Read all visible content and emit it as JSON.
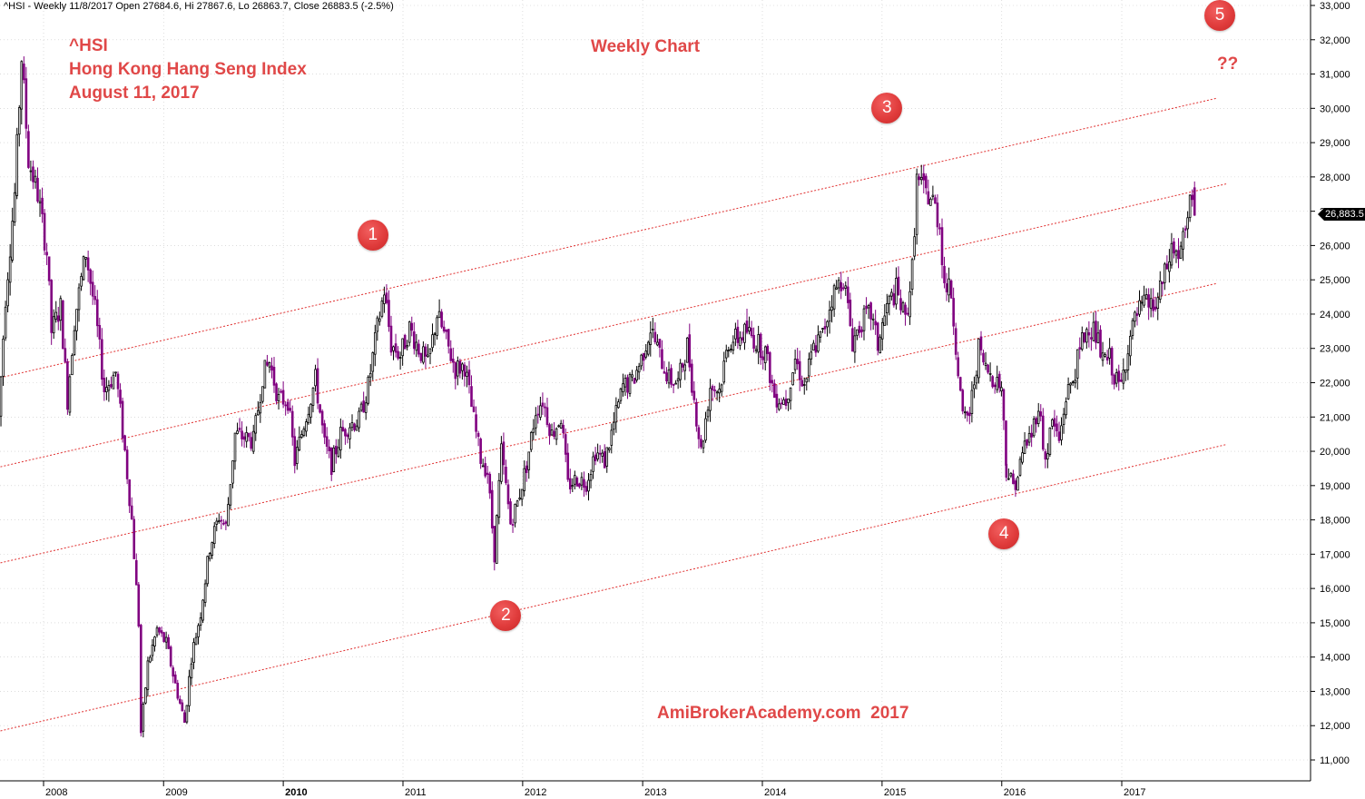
{
  "header": {
    "text": "^HSI - Weekly 11/8/2017 Open 27684.6, Hi 27867.6, Lo 26863.7, Close 26883.5 (-2.5%)"
  },
  "title_lines": [
    "^HSI",
    "Hong Kong Hang Seng Index",
    "August 11, 2017"
  ],
  "subtitle": "Weekly Chart",
  "watermark": "AmiBrokerAcademy.com  2017",
  "question_mark": "??",
  "last_price_label": "26,883.5",
  "colors": {
    "annotation": "#e04848",
    "up_candle": "#000000",
    "down_candle": "#800080",
    "channel": "#e03030",
    "grid": "#c8c8c8"
  },
  "markers": [
    {
      "label": "1",
      "date": "2010-10-01",
      "value": 26300
    },
    {
      "label": "2",
      "date": "2011-11-11",
      "value": 15200
    },
    {
      "label": "3",
      "date": "2015-01-16",
      "value": 30000
    },
    {
      "label": "4",
      "date": "2016-01-08",
      "value": 17600
    },
    {
      "label": "5",
      "date": "2017-10-27",
      "value": 32700
    }
  ],
  "chart_data": {
    "type": "candlestick",
    "title": "Hong Kong Hang Seng Index",
    "ylim": [
      10400,
      33200
    ],
    "y_ticks": [
      11000,
      12000,
      13000,
      14000,
      15000,
      16000,
      17000,
      18000,
      19000,
      20000,
      21000,
      22000,
      23000,
      24000,
      25000,
      26000,
      27000,
      28000,
      29000,
      30000,
      31000,
      32000,
      33000
    ],
    "y_tick_labels": [
      "11,000",
      "12,000",
      "13,000",
      "14,000",
      "15,000",
      "16,000",
      "17,000",
      "18,000",
      "19,000",
      "20,000",
      "21,000",
      "22,000",
      "23,000",
      "24,000",
      "25,000",
      "26,000",
      "27,000",
      "28,000",
      "29,000",
      "30,000",
      "31,000",
      "32,000",
      "33,000"
    ],
    "x_ticks": [
      "2008",
      "2009",
      "2010",
      "2011",
      "2012",
      "2013",
      "2014",
      "2015",
      "2016",
      "2017"
    ],
    "grid": true,
    "price_path": [
      [
        "2007-08-17",
        21000
      ],
      [
        "2007-09-07",
        24500
      ],
      [
        "2007-10-05",
        27500
      ],
      [
        "2007-10-26",
        31500
      ],
      [
        "2007-11-16",
        28500
      ],
      [
        "2007-12-14",
        27500
      ],
      [
        "2008-01-11",
        25800
      ],
      [
        "2008-01-25",
        23500
      ],
      [
        "2008-02-22",
        24200
      ],
      [
        "2008-03-14",
        21500
      ],
      [
        "2008-04-04",
        23800
      ],
      [
        "2008-05-09",
        25800
      ],
      [
        "2008-06-06",
        24100
      ],
      [
        "2008-07-04",
        21800
      ],
      [
        "2008-08-08",
        22300
      ],
      [
        "2008-09-05",
        20000
      ],
      [
        "2008-09-26",
        18000
      ],
      [
        "2008-10-17",
        15000
      ],
      [
        "2008-10-24",
        11800
      ],
      [
        "2008-11-14",
        13800
      ],
      [
        "2008-12-12",
        14800
      ],
      [
        "2009-01-09",
        14400
      ],
      [
        "2009-02-06",
        13200
      ],
      [
        "2009-03-06",
        12100
      ],
      [
        "2009-03-27",
        14000
      ],
      [
        "2009-04-24",
        15300
      ],
      [
        "2009-05-22",
        17200
      ],
      [
        "2009-06-19",
        18100
      ],
      [
        "2009-07-10",
        17800
      ],
      [
        "2009-08-07",
        20500
      ],
      [
        "2009-09-04",
        20400
      ],
      [
        "2009-10-02",
        20300
      ],
      [
        "2009-10-30",
        22200
      ],
      [
        "2009-11-20",
        22600
      ],
      [
        "2009-12-18",
        21500
      ],
      [
        "2010-01-15",
        21500
      ],
      [
        "2010-02-05",
        19700
      ],
      [
        "2010-03-05",
        20800
      ],
      [
        "2010-04-09",
        22100
      ],
      [
        "2010-05-07",
        20200
      ],
      [
        "2010-05-28",
        19600
      ],
      [
        "2010-06-25",
        20500
      ],
      [
        "2010-07-23",
        20800
      ],
      [
        "2010-08-20",
        20900
      ],
      [
        "2010-09-17",
        21900
      ],
      [
        "2010-10-15",
        23600
      ],
      [
        "2010-11-05",
        24700
      ],
      [
        "2010-11-26",
        23100
      ],
      [
        "2010-12-24",
        22800
      ],
      [
        "2011-01-21",
        23600
      ],
      [
        "2011-02-18",
        23000
      ],
      [
        "2011-03-18",
        22500
      ],
      [
        "2011-04-15",
        24000
      ],
      [
        "2011-05-13",
        23200
      ],
      [
        "2011-06-10",
        22400
      ],
      [
        "2011-07-08",
        22500
      ],
      [
        "2011-08-05",
        20900
      ],
      [
        "2011-08-26",
        19800
      ],
      [
        "2011-09-16",
        19400
      ],
      [
        "2011-10-07",
        17000
      ],
      [
        "2011-10-28",
        20000
      ],
      [
        "2011-11-25",
        17900
      ],
      [
        "2011-12-16",
        18500
      ],
      [
        "2012-01-13",
        19600
      ],
      [
        "2012-02-10",
        21200
      ],
      [
        "2012-03-02",
        21500
      ],
      [
        "2012-03-30",
        20500
      ],
      [
        "2012-04-27",
        21000
      ],
      [
        "2012-05-18",
        19000
      ],
      [
        "2012-06-15",
        19200
      ],
      [
        "2012-07-13",
        19100
      ],
      [
        "2012-08-10",
        20000
      ],
      [
        "2012-09-07",
        19700
      ],
      [
        "2012-10-05",
        20800
      ],
      [
        "2012-11-02",
        21900
      ],
      [
        "2012-11-30",
        22000
      ],
      [
        "2012-12-28",
        22700
      ],
      [
        "2013-01-25",
        23600
      ],
      [
        "2013-02-22",
        22800
      ],
      [
        "2013-03-22",
        22100
      ],
      [
        "2013-04-19",
        22000
      ],
      [
        "2013-05-17",
        23100
      ],
      [
        "2013-06-07",
        21500
      ],
      [
        "2013-06-28",
        20000
      ],
      [
        "2013-07-26",
        21900
      ],
      [
        "2013-08-23",
        21800
      ],
      [
        "2013-09-20",
        23200
      ],
      [
        "2013-10-18",
        23300
      ],
      [
        "2013-11-15",
        23500
      ],
      [
        "2013-12-13",
        23200
      ],
      [
        "2014-01-10",
        22900
      ],
      [
        "2014-02-07",
        21600
      ],
      [
        "2014-03-14",
        21500
      ],
      [
        "2014-04-11",
        22700
      ],
      [
        "2014-05-09",
        21900
      ],
      [
        "2014-06-06",
        23000
      ],
      [
        "2014-07-04",
        23400
      ],
      [
        "2014-08-01",
        24500
      ],
      [
        "2014-09-05",
        25100
      ],
      [
        "2014-10-03",
        23200
      ],
      [
        "2014-10-31",
        23800
      ],
      [
        "2014-11-28",
        24000
      ],
      [
        "2014-12-19",
        23100
      ],
      [
        "2015-01-16",
        24200
      ],
      [
        "2015-02-13",
        24700
      ],
      [
        "2015-03-13",
        23800
      ],
      [
        "2015-04-03",
        25300
      ],
      [
        "2015-04-17",
        27900
      ],
      [
        "2015-05-08",
        27600
      ],
      [
        "2015-06-05",
        27300
      ],
      [
        "2015-06-26",
        26600
      ],
      [
        "2015-07-10",
        24900
      ],
      [
        "2015-07-31",
        24600
      ],
      [
        "2015-08-21",
        22400
      ],
      [
        "2015-09-04",
        20900
      ],
      [
        "2015-09-25",
        21100
      ],
      [
        "2015-10-23",
        23000
      ],
      [
        "2015-11-13",
        22400
      ],
      [
        "2015-12-04",
        22200
      ],
      [
        "2015-12-31",
        21900
      ],
      [
        "2016-01-15",
        19500
      ],
      [
        "2016-02-05",
        19000
      ],
      [
        "2016-02-19",
        19300
      ],
      [
        "2016-03-11",
        20200
      ],
      [
        "2016-04-01",
        20500
      ],
      [
        "2016-04-22",
        21400
      ],
      [
        "2016-05-13",
        19700
      ],
      [
        "2016-06-03",
        20900
      ],
      [
        "2016-06-24",
        20300
      ],
      [
        "2016-07-15",
        21600
      ],
      [
        "2016-08-05",
        22100
      ],
      [
        "2016-09-02",
        23200
      ],
      [
        "2016-09-23",
        23700
      ],
      [
        "2016-10-14",
        23400
      ],
      [
        "2016-11-04",
        22600
      ],
      [
        "2016-11-25",
        22700
      ],
      [
        "2016-12-16",
        22000
      ],
      [
        "2016-12-30",
        21900
      ],
      [
        "2017-01-20",
        23100
      ],
      [
        "2017-02-17",
        24000
      ],
      [
        "2017-03-17",
        24300
      ],
      [
        "2017-04-14",
        24200
      ],
      [
        "2017-05-12",
        25100
      ],
      [
        "2017-06-02",
        25900
      ],
      [
        "2017-06-23",
        25700
      ],
      [
        "2017-07-14",
        26300
      ],
      [
        "2017-08-04",
        27500
      ],
      [
        "2017-08-11",
        26883.5
      ]
    ],
    "channel_lines": [
      {
        "start": [
          "2007-08-01",
          22100
        ],
        "end": [
          "2017-10-20",
          30300
        ]
      },
      {
        "start": [
          "2007-08-01",
          19500
        ],
        "end": [
          "2017-11-17",
          27800
        ]
      },
      {
        "start": [
          "2007-08-01",
          16700
        ],
        "end": [
          "2017-10-20",
          24900
        ]
      },
      {
        "start": [
          "2007-08-01",
          11800
        ],
        "end": [
          "2017-11-17",
          20200
        ]
      }
    ],
    "last": {
      "date": "2017-08-11",
      "open": 27684.6,
      "high": 27867.6,
      "low": 26863.7,
      "close": 26883.5
    }
  }
}
